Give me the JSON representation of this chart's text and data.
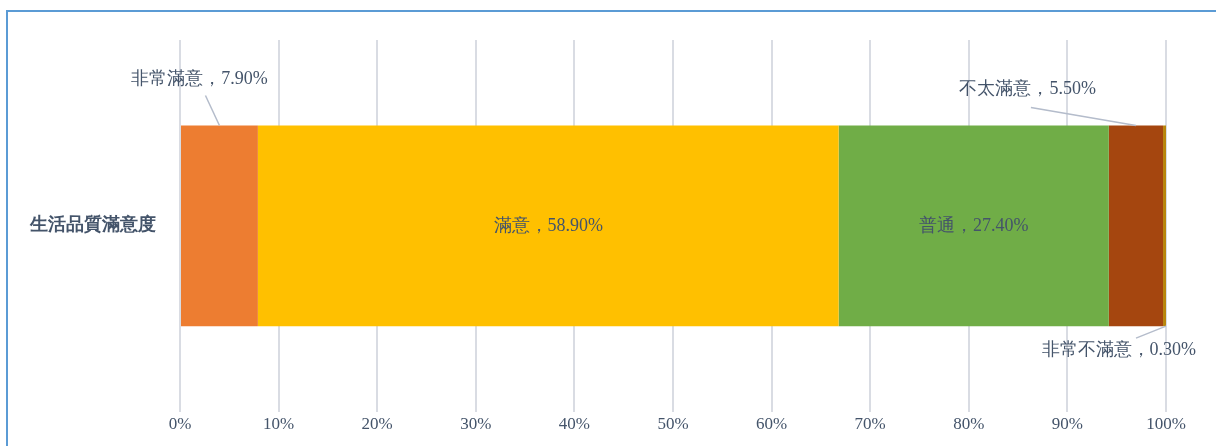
{
  "chart_data": {
    "type": "bar",
    "orientation": "horizontal",
    "stacked": true,
    "categories": [
      "生活品質滿意度"
    ],
    "series": [
      {
        "name": "非常滿意",
        "color": "#ed7d31",
        "values": [
          7.9
        ],
        "value_labels": [
          "，7.90%"
        ]
      },
      {
        "name": "滿意",
        "color": "#ffc000",
        "values": [
          58.9
        ],
        "value_labels": [
          "，58.90%"
        ]
      },
      {
        "name": "普通",
        "color": "#70ad47",
        "values": [
          27.4
        ],
        "value_labels": [
          "，27.40%"
        ]
      },
      {
        "name": "不太滿意",
        "color": "#a5460f",
        "values": [
          5.5
        ],
        "value_labels": [
          "，5.50%"
        ]
      },
      {
        "name": "非常不滿意",
        "color": "#b8860b",
        "values": [
          0.3
        ],
        "value_labels": [
          "，0.30%"
        ]
      }
    ],
    "xlim": [
      0,
      100
    ],
    "xticks": [
      {
        "value": 0,
        "label": "0%"
      },
      {
        "value": 10,
        "label": "10%"
      },
      {
        "value": 20,
        "label": "20%"
      },
      {
        "value": 30,
        "label": "30%"
      },
      {
        "value": 40,
        "label": "40%"
      },
      {
        "value": 50,
        "label": "50%"
      },
      {
        "value": 60,
        "label": "60%"
      },
      {
        "value": 70,
        "label": "70%"
      },
      {
        "value": 80,
        "label": "80%"
      },
      {
        "value": 90,
        "label": "90%"
      },
      {
        "value": 100,
        "label": "100%"
      }
    ],
    "grid": "x",
    "legend": false
  }
}
